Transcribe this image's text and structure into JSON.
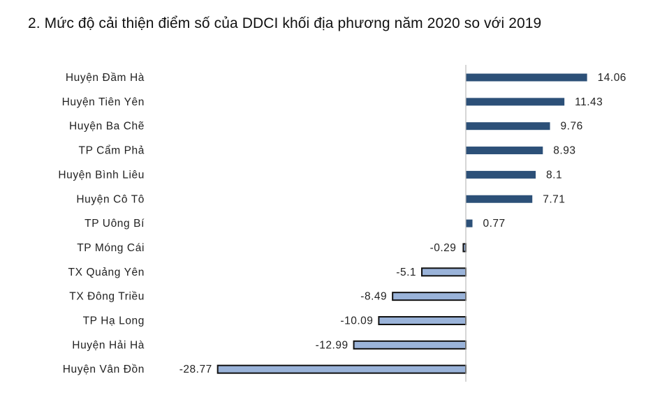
{
  "chart_data": {
    "type": "bar",
    "orientation": "horizontal",
    "title": "2. Mức độ cải thiện điểm số của DDCI khối địa phương năm 2020 so với 2019",
    "categories": [
      "Huyện Đầm Hà",
      "Huyện Tiên Yên",
      "Huyện Ba Chẽ",
      "TP Cẩm Phả",
      "Huyện Bình Liêu",
      "Huyện Cô Tô",
      "TP Uông Bí",
      "TP Móng Cái",
      "TX Quảng Yên",
      "TX Đông Triều",
      "TP Hạ Long",
      "Huyện Hải Hà",
      "Huyện Vân Đồn"
    ],
    "values": [
      14.06,
      11.43,
      9.76,
      8.93,
      8.1,
      7.71,
      0.77,
      -0.29,
      -5.1,
      -8.49,
      -10.09,
      -12.99,
      -28.77
    ],
    "value_labels": [
      "14.06",
      "11.43",
      "9.76",
      "8.93",
      "8.1",
      "7.71",
      "0.77",
      "-0.29",
      "-5.1",
      "-8.49",
      "-10.09",
      "-12.99",
      "-28.77"
    ],
    "positive_color": "#2c5078",
    "negative_color": "#9ab3d9",
    "negative_border": "#111111",
    "xlim": [
      -28.77,
      14.06
    ],
    "grid": false,
    "legend": "none"
  }
}
